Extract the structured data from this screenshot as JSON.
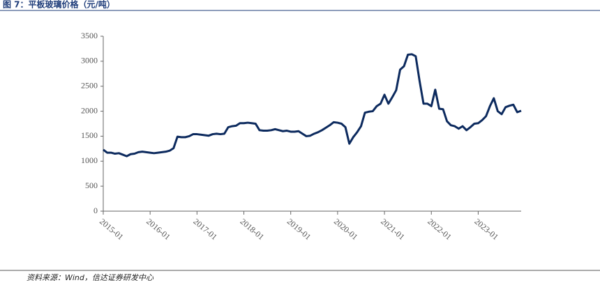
{
  "chart_data": {
    "type": "line",
    "title": "图 7：平板玻璃价格（元/吨）",
    "source": "资料来源：Wind，信达证券研发中心",
    "categories": [
      "2015-01",
      null,
      null,
      null,
      null,
      null,
      null,
      null,
      null,
      null,
      null,
      null,
      "2016-01",
      null,
      null,
      null,
      null,
      null,
      null,
      null,
      null,
      null,
      null,
      null,
      "2017-01",
      null,
      null,
      null,
      null,
      null,
      null,
      null,
      null,
      null,
      null,
      null,
      "2018-01",
      null,
      null,
      null,
      null,
      null,
      null,
      null,
      null,
      null,
      null,
      null,
      "2019-01",
      null,
      null,
      null,
      null,
      null,
      null,
      null,
      null,
      null,
      null,
      null,
      "2020-01",
      null,
      null,
      null,
      null,
      null,
      null,
      null,
      null,
      null,
      null,
      null,
      "2021-01",
      null,
      null,
      null,
      null,
      null,
      null,
      null,
      null,
      null,
      null,
      null,
      "2022-01",
      null,
      null,
      null,
      null,
      null,
      null,
      null,
      null,
      null,
      null,
      null,
      "2023-01",
      null,
      null,
      null,
      null,
      null,
      null,
      null,
      null,
      null,
      null,
      null
    ],
    "series": [
      {
        "color": "#0c2a5e",
        "values": [
          1230,
          1170,
          1170,
          1150,
          1160,
          1130,
          1100,
          1140,
          1150,
          1180,
          1190,
          1180,
          1170,
          1160,
          1170,
          1180,
          1190,
          1210,
          1260,
          1490,
          1480,
          1480,
          1500,
          1540,
          1540,
          1530,
          1520,
          1510,
          1540,
          1550,
          1540,
          1550,
          1680,
          1700,
          1710,
          1760,
          1760,
          1770,
          1760,
          1750,
          1620,
          1610,
          1610,
          1620,
          1640,
          1620,
          1600,
          1610,
          1590,
          1590,
          1600,
          1550,
          1500,
          1510,
          1550,
          1580,
          1620,
          1670,
          1720,
          1780,
          1770,
          1750,
          1680,
          1350,
          1480,
          1580,
          1700,
          1970,
          1990,
          2000,
          2100,
          2150,
          2330,
          2150,
          2280,
          2420,
          2830,
          2900,
          3130,
          3140,
          3100,
          2600,
          2150,
          2150,
          2100,
          2430,
          2050,
          2040,
          1800,
          1720,
          1700,
          1650,
          1700,
          1620,
          1680,
          1750,
          1760,
          1820,
          1900,
          2100,
          2260,
          2000,
          1940,
          2080,
          2110,
          2130,
          1980,
          2010
        ]
      }
    ],
    "ylim": [
      0,
      3500
    ],
    "yticks": [
      0,
      500,
      1000,
      1500,
      2000,
      2500,
      3000,
      3500
    ]
  }
}
